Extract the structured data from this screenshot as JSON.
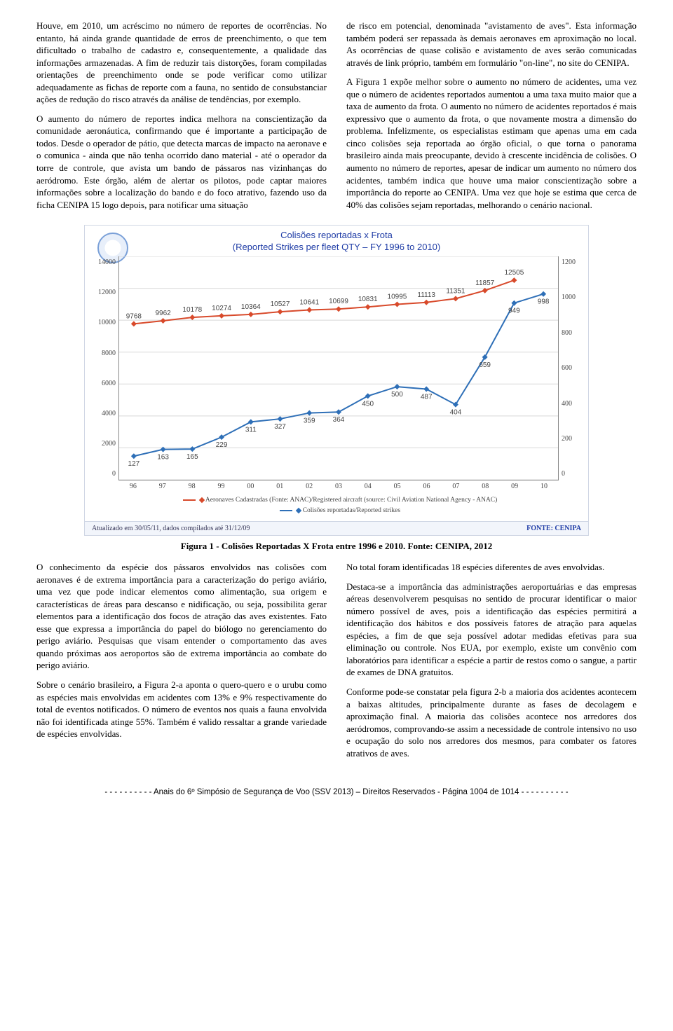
{
  "top": {
    "left": {
      "p1": "Houve, em 2010, um acréscimo no número de reportes de ocorrências. No entanto, há ainda grande quantidade de erros de preenchimento, o que tem dificultado o trabalho de cadastro e, consequentemente, a qualidade das informações armazenadas. A fim de reduzir tais distorções, foram compiladas orientações de preenchimento onde se pode verificar como utilizar adequadamente as fichas de reporte com a fauna, no sentido de consubstanciar ações de redução do risco através da análise de tendências, por exemplo.",
      "p2": "O aumento do número de reportes indica melhora na conscientização da comunidade aeronáutica, confirmando que é importante a participação de todos. Desde o operador de pátio, que detecta marcas de impacto na aeronave e o comunica - ainda que não tenha ocorrido dano material - até o operador da torre de controle, que avista um bando de pássaros nas vizinhanças do aeródromo. Este órgão, além de alertar os pilotos, pode captar maiores informações sobre a localização do bando e do foco atrativo, fazendo uso da ficha CENIPA 15 logo depois, para notificar uma situação"
    },
    "right": {
      "p1": "de risco em potencial, denominada \"avistamento de aves\". Esta informação também poderá ser repassada às demais aeronaves em aproximação no local. As ocorrências de quase colisão e avistamento de aves serão comunicadas através de link próprio, também em formulário \"on-line\", no site do CENIPA.",
      "p2": "A Figura 1 expõe melhor sobre o aumento no número de acidentes, uma vez que o número de acidentes reportados aumentou a uma taxa muito maior que a taxa de aumento da frota. O aumento no número de acidentes reportados é mais expressivo que o aumento da frota, o que novamente mostra a dimensão do problema. Infelizmente, os especialistas estimam que apenas uma em cada cinco colisões seja reportada ao órgão oficial, o que torna o panorama brasileiro ainda mais preocupante, devido à crescente incidência de colisões. O aumento no número de reportes, apesar de indicar um aumento no número dos acidentes, também indica que houve uma maior conscientização sobre a importância do reporte ao CENIPA. Uma vez que hoje se estima que cerca de 40% das colisões sejam reportadas, melhorando o cenário nacional."
    }
  },
  "chart": {
    "type": "line-dual-axis",
    "title_line1": "Colisões reportadas x Frota",
    "title_line2": "(Reported Strikes per fleet QTY – FY 1996 to 2010)",
    "title_color": "#1f3ca6",
    "title_fontsize": 13,
    "background_color": "#ffffff",
    "grid_color": "#d8d8d8",
    "axis_color": "#888888",
    "label_fontsize": 10,
    "x_categories": [
      "96",
      "97",
      "98",
      "99",
      "00",
      "01",
      "02",
      "03",
      "04",
      "05",
      "06",
      "07",
      "08",
      "09",
      "10"
    ],
    "left_axis": {
      "min": 0,
      "max": 14000,
      "step": 2000,
      "ticks": [
        0,
        2000,
        4000,
        6000,
        8000,
        10000,
        12000,
        14000
      ]
    },
    "right_axis": {
      "min": 0,
      "max": 1200,
      "step": 200,
      "ticks": [
        0,
        200,
        400,
        600,
        800,
        1000,
        1200
      ]
    },
    "series": [
      {
        "name": "Aeronaves Cadastradas",
        "axis": "left",
        "color": "#d84a2b",
        "marker": "diamond",
        "line_width": 2,
        "values": [
          9768,
          9962,
          10178,
          10274,
          10364,
          10527,
          10641,
          10699,
          10831,
          10995,
          11113,
          11351,
          11857,
          12505,
          null
        ],
        "value_labels": [
          9768,
          9962,
          10178,
          10274,
          10364,
          10527,
          10641,
          10699,
          10831,
          10995,
          11113,
          11351,
          11857,
          12505,
          null
        ]
      },
      {
        "name": "Colisões reportadas",
        "axis": "right",
        "color": "#2e6fb7",
        "marker": "diamond",
        "line_width": 2,
        "values": [
          127,
          163,
          165,
          229,
          311,
          327,
          359,
          364,
          450,
          500,
          487,
          404,
          659,
          949,
          998
        ],
        "value_labels": [
          127,
          163,
          165,
          229,
          311,
          327,
          359,
          364,
          450,
          500,
          487,
          404,
          659,
          949,
          998
        ]
      }
    ],
    "legend": {
      "l1": "Aeronaves Cadastradas (Fonte: ANAC)/Registered aircraft (source: Civil Aviation National Agency - ANAC)",
      "l2": "Colisões reportadas/Reported strikes"
    },
    "footer_left": "Atualizado em 30/05/11, dados compilados até 31/12/09",
    "footer_right": "FONTE: CENIPA"
  },
  "caption": "Figura 1 - Colisões Reportadas X Frota entre 1996 e 2010. Fonte: CENIPA, 2012",
  "bottom": {
    "left": {
      "p1": "O conhecimento da espécie dos pássaros envolvidos nas colisões com aeronaves é de extrema importância para a caracterização do perigo aviário, uma vez que pode indicar elementos como alimentação, sua origem e características de áreas para descanso e nidificação, ou seja, possibilita gerar elementos para a identificação dos focos de atração das aves existentes. Fato esse que expressa a importância do papel do biólogo no gerenciamento do perigo aviário. Pesquisas que visam entender o comportamento das aves quando próximas aos aeroportos são de extrema importância ao combate do perigo aviário.",
      "p2": "Sobre o cenário brasileiro, a Figura 2-a aponta o quero-quero e o urubu como as espécies mais envolvidas em acidentes com 13% e 9% respectivamente do total de eventos notificados. O número de eventos nos quais a fauna envolvida não foi identificada atinge 55%. Também é valido ressaltar a grande variedade de espécies envolvidas."
    },
    "right": {
      "p1": "No total foram identificadas 18 espécies diferentes de aves envolvidas.",
      "p2": "Destaca-se a importância das administrações aeroportuárias e das empresas aéreas desenvolverem pesquisas no sentido de procurar identificar o maior número possível de aves, pois a identificação das espécies permitirá a identificação dos hábitos e dos possíveis fatores de atração para aquelas espécies, a fim de que seja possível adotar medidas efetivas para sua eliminação ou controle. Nos EUA, por exemplo, existe um convênio com laboratórios para identificar a espécie a partir de restos como o sangue, a partir de exames de DNA gratuitos.",
      "p3": "Conforme pode-se constatar pela figura 2-b a maioria dos acidentes acontecem a baixas altitudes, principalmente durante as fases de decolagem e aproximação final. A maioria das colisões acontece nos arredores dos aeródromos, comprovando-se assim a necessidade de controle intensivo no uso e ocupação do solo nos arredores dos mesmos, para combater os fatores atrativos de aves."
    }
  },
  "page_footer": "- - - - - - - - - - Anais do 6º Simpósio de Segurança de Voo (SSV 2013) – Direitos Reservados - Página 1004 de 1014 - - - - - - - - - -"
}
